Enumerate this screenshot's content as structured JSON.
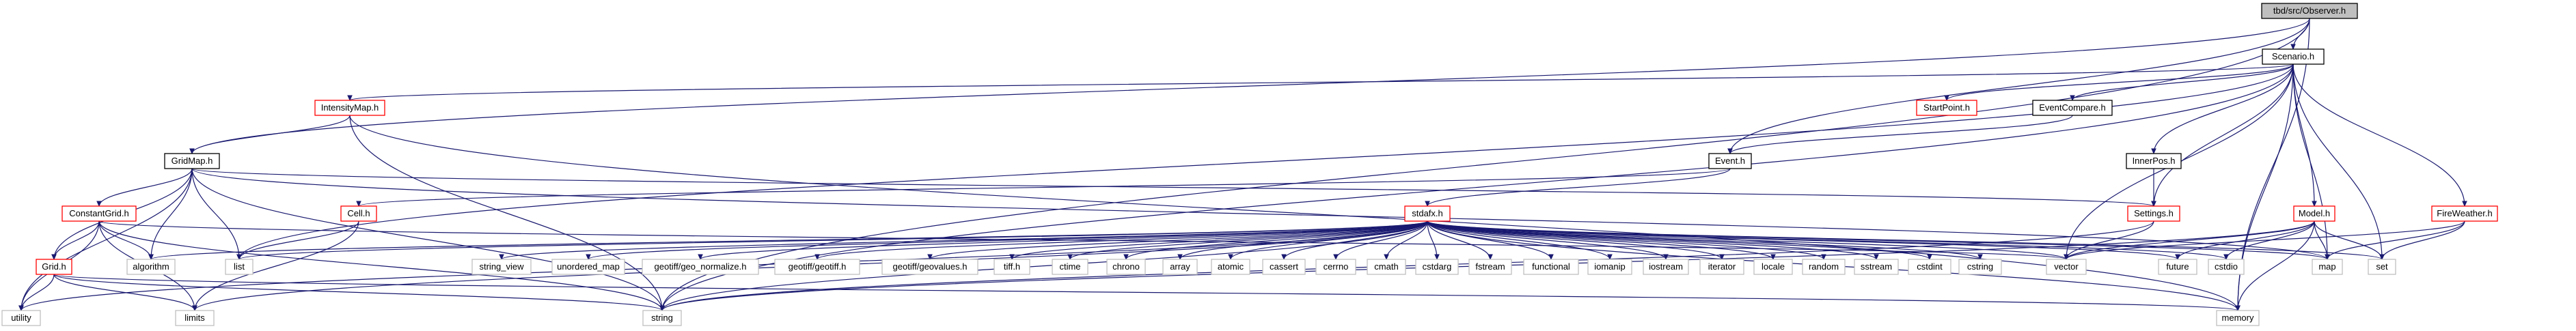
{
  "diagram": {
    "type": "include-dependency-graph",
    "colors": {
      "root_fill": "#bfbfbf",
      "node_fill": "#ffffff",
      "border_normal": "#000000",
      "border_truncated": "#ff0000",
      "border_system": "#bfbfbf",
      "text": "#000000",
      "edge": "#191970"
    },
    "nodes": [
      {
        "id": "observer",
        "label": "tbd/src/Observer.h",
        "kind": "root"
      },
      {
        "id": "scenario",
        "label": "Scenario.h",
        "kind": "normal"
      },
      {
        "id": "intensitymap",
        "label": "IntensityMap.h",
        "kind": "truncated"
      },
      {
        "id": "startpoint",
        "label": "StartPoint.h",
        "kind": "truncated"
      },
      {
        "id": "eventcompare",
        "label": "EventCompare.h",
        "kind": "normal"
      },
      {
        "id": "gridmap",
        "label": "GridMap.h",
        "kind": "normal"
      },
      {
        "id": "event",
        "label": "Event.h",
        "kind": "normal"
      },
      {
        "id": "innerpos",
        "label": "InnerPos.h",
        "kind": "normal"
      },
      {
        "id": "constantgrid",
        "label": "ConstantGrid.h",
        "kind": "truncated"
      },
      {
        "id": "cell",
        "label": "Cell.h",
        "kind": "truncated"
      },
      {
        "id": "stdafx",
        "label": "stdafx.h",
        "kind": "truncated"
      },
      {
        "id": "settings",
        "label": "Settings.h",
        "kind": "truncated"
      },
      {
        "id": "model",
        "label": "Model.h",
        "kind": "truncated"
      },
      {
        "id": "fireweather",
        "label": "FireWeather.h",
        "kind": "truncated"
      },
      {
        "id": "grid",
        "label": "Grid.h",
        "kind": "truncated"
      },
      {
        "id": "algorithm",
        "label": "algorithm",
        "kind": "system"
      },
      {
        "id": "list",
        "label": "list",
        "kind": "system"
      },
      {
        "id": "string_view",
        "label": "string_view",
        "kind": "system"
      },
      {
        "id": "unordered_map",
        "label": "unordered_map",
        "kind": "system"
      },
      {
        "id": "geo_normalize",
        "label": "geotiff/geo_normalize.h",
        "kind": "system"
      },
      {
        "id": "geotiff",
        "label": "geotiff/geotiff.h",
        "kind": "system"
      },
      {
        "id": "geovalues",
        "label": "geotiff/geovalues.h",
        "kind": "system"
      },
      {
        "id": "tiff",
        "label": "tiff.h",
        "kind": "system"
      },
      {
        "id": "ctime",
        "label": "ctime",
        "kind": "system"
      },
      {
        "id": "chrono",
        "label": "chrono",
        "kind": "system"
      },
      {
        "id": "array",
        "label": "array",
        "kind": "system"
      },
      {
        "id": "atomic",
        "label": "atomic",
        "kind": "system"
      },
      {
        "id": "cassert",
        "label": "cassert",
        "kind": "system"
      },
      {
        "id": "cerrno",
        "label": "cerrno",
        "kind": "system"
      },
      {
        "id": "cmath",
        "label": "cmath",
        "kind": "system"
      },
      {
        "id": "cstdarg",
        "label": "cstdarg",
        "kind": "system"
      },
      {
        "id": "fstream",
        "label": "fstream",
        "kind": "system"
      },
      {
        "id": "functional",
        "label": "functional",
        "kind": "system"
      },
      {
        "id": "iomanip",
        "label": "iomanip",
        "kind": "system"
      },
      {
        "id": "iostream",
        "label": "iostream",
        "kind": "system"
      },
      {
        "id": "iterator",
        "label": "iterator",
        "kind": "system"
      },
      {
        "id": "locale",
        "label": "locale",
        "kind": "system"
      },
      {
        "id": "random",
        "label": "random",
        "kind": "system"
      },
      {
        "id": "sstream",
        "label": "sstream",
        "kind": "system"
      },
      {
        "id": "cstdint",
        "label": "cstdint",
        "kind": "system"
      },
      {
        "id": "cstring",
        "label": "cstring",
        "kind": "system"
      },
      {
        "id": "vector",
        "label": "vector",
        "kind": "system"
      },
      {
        "id": "future",
        "label": "future",
        "kind": "system"
      },
      {
        "id": "cstdio",
        "label": "cstdio",
        "kind": "system"
      },
      {
        "id": "map",
        "label": "map",
        "kind": "system"
      },
      {
        "id": "set",
        "label": "set",
        "kind": "system"
      },
      {
        "id": "utility",
        "label": "utility",
        "kind": "system"
      },
      {
        "id": "limits",
        "label": "limits",
        "kind": "system"
      },
      {
        "id": "string",
        "label": "string",
        "kind": "system"
      },
      {
        "id": "memory",
        "label": "memory",
        "kind": "system"
      }
    ],
    "edges": [
      [
        "observer",
        "scenario"
      ],
      [
        "observer",
        "gridmap"
      ],
      [
        "observer",
        "event"
      ],
      [
        "observer",
        "string"
      ],
      [
        "observer",
        "memory"
      ],
      [
        "scenario",
        "intensitymap"
      ],
      [
        "scenario",
        "startpoint"
      ],
      [
        "scenario",
        "eventcompare"
      ],
      [
        "scenario",
        "innerpos"
      ],
      [
        "scenario",
        "settings"
      ],
      [
        "scenario",
        "model"
      ],
      [
        "scenario",
        "fireweather"
      ],
      [
        "scenario",
        "list"
      ],
      [
        "scenario",
        "vector"
      ],
      [
        "scenario",
        "map"
      ],
      [
        "scenario",
        "set"
      ],
      [
        "scenario",
        "string"
      ],
      [
        "scenario",
        "memory"
      ],
      [
        "intensitymap",
        "gridmap"
      ],
      [
        "intensitymap",
        "string"
      ],
      [
        "intensitymap",
        "memory"
      ],
      [
        "eventcompare",
        "event"
      ],
      [
        "gridmap",
        "constantgrid"
      ],
      [
        "gridmap",
        "grid"
      ],
      [
        "gridmap",
        "algorithm"
      ],
      [
        "gridmap",
        "list"
      ],
      [
        "gridmap",
        "string"
      ],
      [
        "gridmap",
        "utility"
      ],
      [
        "gridmap",
        "settings"
      ],
      [
        "gridmap",
        "map"
      ],
      [
        "event",
        "cell"
      ],
      [
        "event",
        "stdafx"
      ],
      [
        "innerpos",
        "settings"
      ],
      [
        "constantgrid",
        "grid"
      ],
      [
        "constantgrid",
        "algorithm"
      ],
      [
        "constantgrid",
        "utility"
      ],
      [
        "constantgrid",
        "string"
      ],
      [
        "constantgrid",
        "limits"
      ],
      [
        "constantgrid",
        "vector"
      ],
      [
        "cell",
        "list"
      ],
      [
        "cell",
        "limits"
      ],
      [
        "stdafx",
        "algorithm"
      ],
      [
        "stdafx",
        "list"
      ],
      [
        "stdafx",
        "string_view"
      ],
      [
        "stdafx",
        "unordered_map"
      ],
      [
        "stdafx",
        "geo_normalize"
      ],
      [
        "stdafx",
        "geotiff"
      ],
      [
        "stdafx",
        "geovalues"
      ],
      [
        "stdafx",
        "tiff"
      ],
      [
        "stdafx",
        "ctime"
      ],
      [
        "stdafx",
        "chrono"
      ],
      [
        "stdafx",
        "array"
      ],
      [
        "stdafx",
        "atomic"
      ],
      [
        "stdafx",
        "cassert"
      ],
      [
        "stdafx",
        "cerrno"
      ],
      [
        "stdafx",
        "cmath"
      ],
      [
        "stdafx",
        "cstdarg"
      ],
      [
        "stdafx",
        "fstream"
      ],
      [
        "stdafx",
        "functional"
      ],
      [
        "stdafx",
        "iomanip"
      ],
      [
        "stdafx",
        "iostream"
      ],
      [
        "stdafx",
        "iterator"
      ],
      [
        "stdafx",
        "locale"
      ],
      [
        "stdafx",
        "random"
      ],
      [
        "stdafx",
        "sstream"
      ],
      [
        "stdafx",
        "cstdint"
      ],
      [
        "stdafx",
        "cstring"
      ],
      [
        "stdafx",
        "vector"
      ],
      [
        "stdafx",
        "future"
      ],
      [
        "stdafx",
        "cstdio"
      ],
      [
        "stdafx",
        "map"
      ],
      [
        "stdafx",
        "set"
      ],
      [
        "stdafx",
        "utility"
      ],
      [
        "stdafx",
        "limits"
      ],
      [
        "stdafx",
        "string"
      ],
      [
        "stdafx",
        "memory"
      ],
      [
        "settings",
        "vector"
      ],
      [
        "settings",
        "string"
      ],
      [
        "model",
        "vector"
      ],
      [
        "model",
        "future"
      ],
      [
        "model",
        "cstdio"
      ],
      [
        "model",
        "map"
      ],
      [
        "model",
        "string"
      ],
      [
        "model",
        "memory"
      ],
      [
        "model",
        "set"
      ],
      [
        "fireweather",
        "map"
      ],
      [
        "fireweather",
        "set"
      ],
      [
        "fireweather",
        "vector"
      ],
      [
        "grid",
        "utility"
      ],
      [
        "grid",
        "limits"
      ],
      [
        "grid",
        "string"
      ],
      [
        "grid",
        "memory"
      ]
    ]
  }
}
